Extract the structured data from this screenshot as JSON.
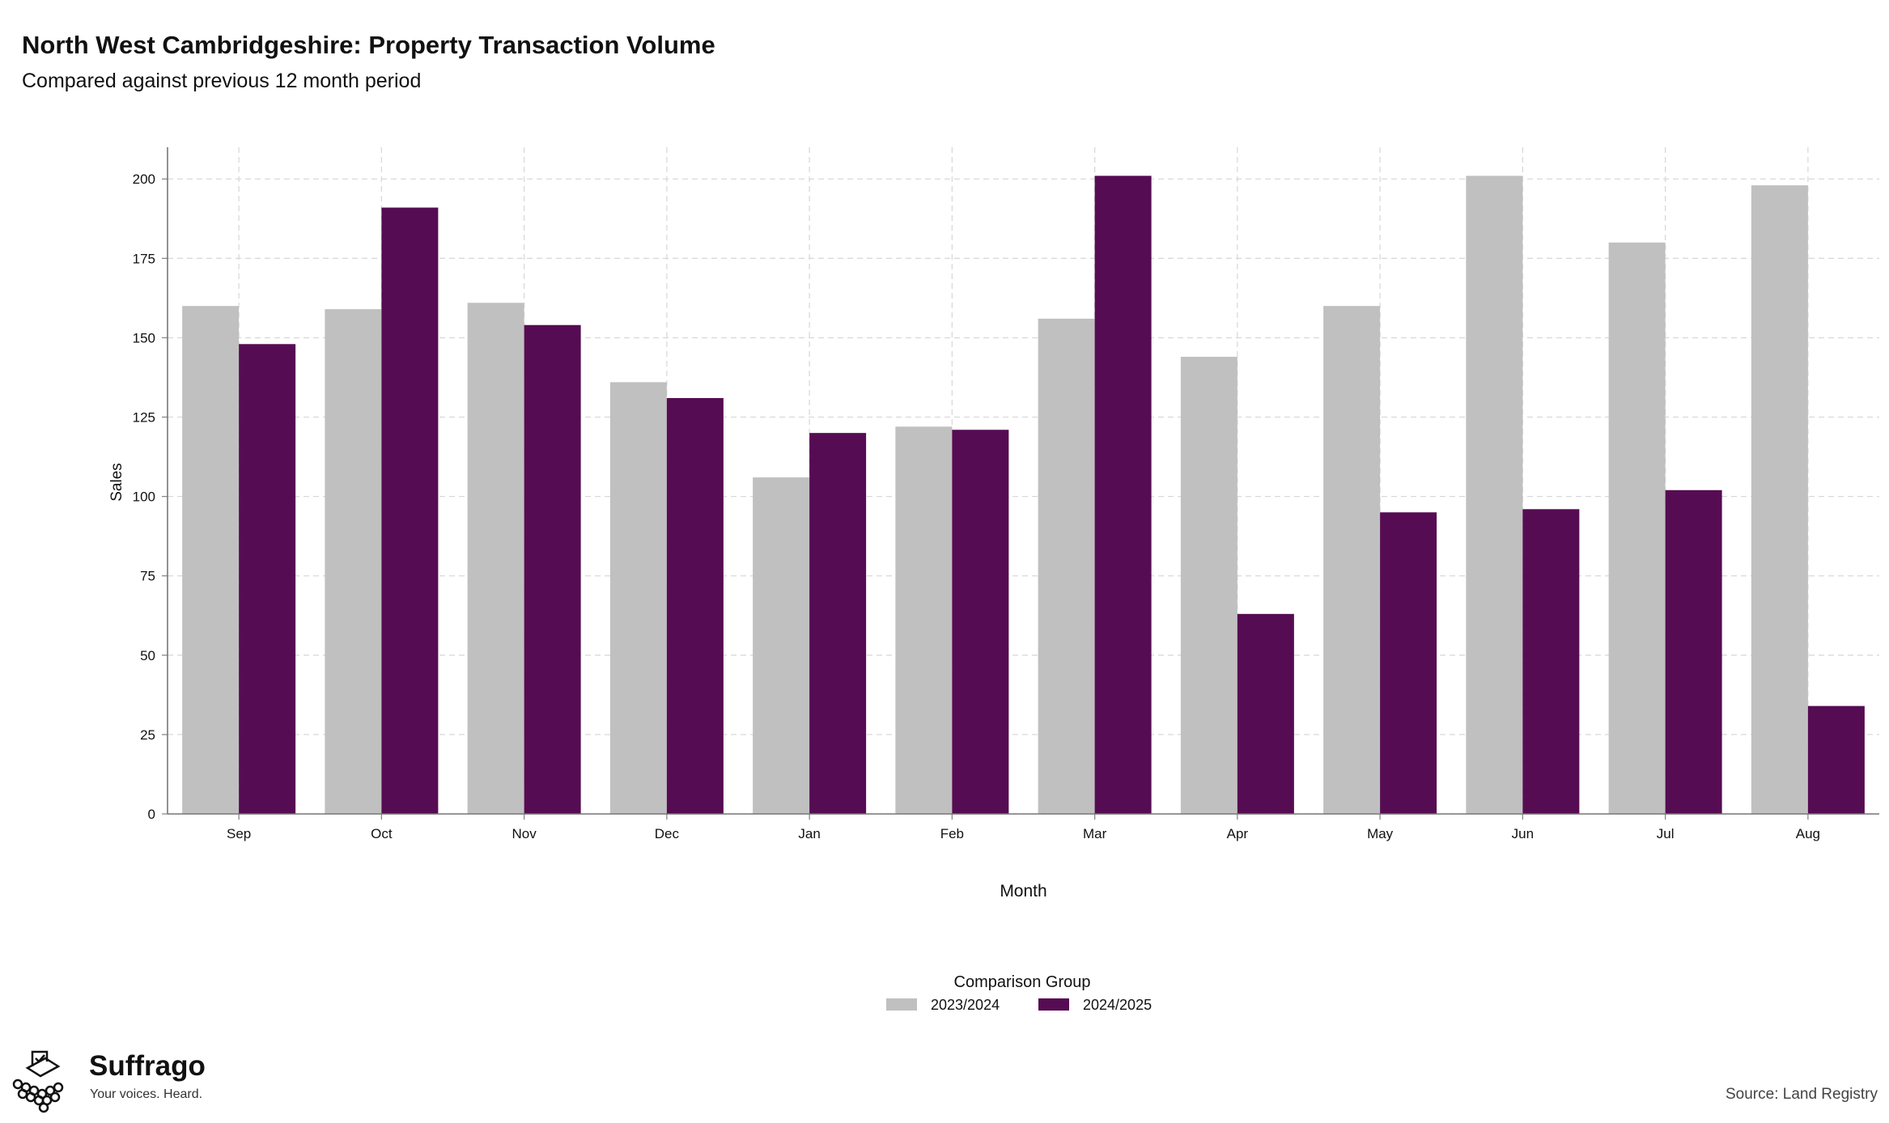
{
  "title": "North West Cambridgeshire: Property Transaction Volume",
  "subtitle": "Compared against previous 12 month period",
  "source": "Source: Land Registry",
  "brand": {
    "name": "Suffrago",
    "tagline": "Your voices. Heard."
  },
  "chart_data": {
    "type": "bar",
    "categories": [
      "Sep",
      "Oct",
      "Nov",
      "Dec",
      "Jan",
      "Feb",
      "Mar",
      "Apr",
      "May",
      "Jun",
      "Jul",
      "Aug"
    ],
    "series": [
      {
        "name": "2023/2024",
        "color": "#c0c0c0",
        "values": [
          160,
          159,
          161,
          136,
          106,
          122,
          156,
          144,
          160,
          201,
          180,
          198
        ]
      },
      {
        "name": "2024/2025",
        "color": "#560c52",
        "values": [
          148,
          191,
          154,
          131,
          120,
          121,
          201,
          63,
          95,
          96,
          102,
          34
        ]
      }
    ],
    "xlabel": "Month",
    "ylabel": "Sales",
    "ylim": [
      0,
      210
    ],
    "yticks": [
      0,
      25,
      50,
      75,
      100,
      125,
      150,
      175,
      200
    ],
    "legend_title": "Comparison Group",
    "legend_position": "bottom",
    "grid": true
  }
}
